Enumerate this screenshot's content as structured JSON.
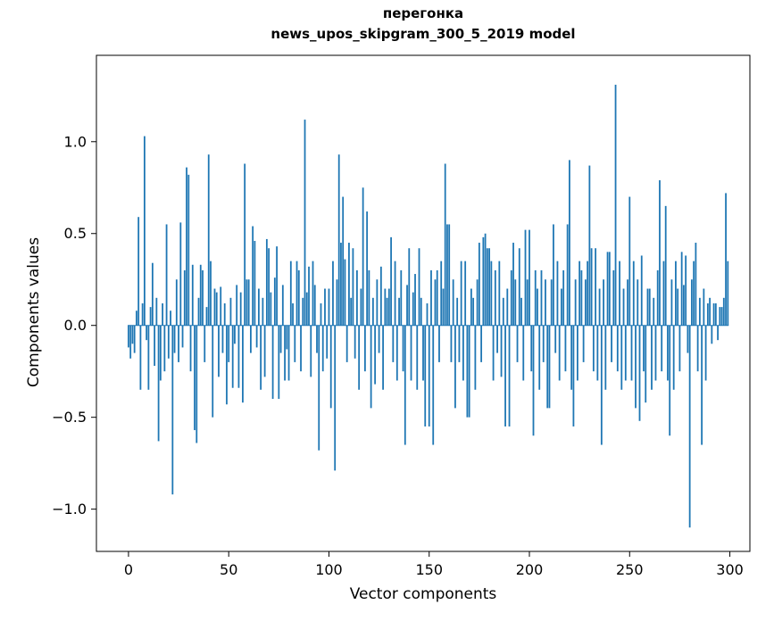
{
  "chart": {
    "title_line1": "перегонка",
    "title_line2": "news_upos_skipgram_300_5_2019 model",
    "xlabel": "Vector components",
    "ylabel": "Components values"
  },
  "chart_data": {
    "type": "bar",
    "title": "перегонка — news_upos_skipgram_300_5_2019 model",
    "xlabel": "Vector components",
    "ylabel": "Components values",
    "legend": null,
    "grid": false,
    "bar_color": "#1f77b4",
    "xlim": [
      -16,
      310
    ],
    "ylim": [
      -1.23,
      1.47
    ],
    "xticks": [
      0,
      50,
      100,
      150,
      200,
      250,
      300
    ],
    "xtick_labels": [
      "0",
      "50",
      "100",
      "150",
      "200",
      "250",
      "300"
    ],
    "yticks": [
      -1.0,
      -0.5,
      0.0,
      0.5,
      1.0
    ],
    "ytick_labels": [
      "−1.0",
      "−0.5",
      "0.0",
      "0.5",
      "1.0"
    ],
    "x_start": 0,
    "bar_width_units": 0.8,
    "values": [
      -0.12,
      -0.18,
      -0.1,
      -0.15,
      0.08,
      0.59,
      -0.35,
      0.12,
      1.03,
      -0.08,
      -0.35,
      0.1,
      0.34,
      -0.22,
      0.15,
      -0.63,
      -0.3,
      0.12,
      -0.25,
      0.55,
      -0.18,
      0.08,
      -0.92,
      -0.15,
      0.25,
      -0.2,
      0.56,
      -0.12,
      0.3,
      0.86,
      0.82,
      -0.25,
      0.33,
      -0.57,
      -0.64,
      0.15,
      0.33,
      0.3,
      -0.2,
      0.1,
      0.93,
      0.35,
      -0.5,
      0.2,
      0.18,
      -0.28,
      0.21,
      -0.15,
      0.12,
      -0.43,
      -0.2,
      0.15,
      -0.34,
      -0.1,
      0.22,
      -0.34,
      0.18,
      -0.42,
      0.88,
      0.25,
      0.25,
      -0.15,
      0.54,
      0.46,
      -0.12,
      0.2,
      -0.35,
      0.15,
      -0.28,
      0.47,
      0.42,
      0.18,
      -0.4,
      0.26,
      0.43,
      -0.4,
      -0.15,
      0.22,
      -0.3,
      -0.13,
      -0.3,
      0.35,
      0.12,
      -0.2,
      0.35,
      0.3,
      -0.25,
      0.15,
      1.12,
      0.18,
      0.32,
      -0.28,
      0.35,
      0.22,
      -0.15,
      -0.68,
      0.12,
      -0.25,
      0.2,
      -0.18,
      0.2,
      -0.45,
      0.35,
      -0.79,
      0.25,
      0.93,
      0.45,
      0.7,
      0.36,
      -0.2,
      0.45,
      0.15,
      0.42,
      -0.18,
      0.3,
      -0.35,
      0.2,
      0.75,
      -0.25,
      0.62,
      0.3,
      -0.45,
      0.15,
      -0.32,
      0.25,
      -0.15,
      0.32,
      -0.35,
      0.2,
      0.15,
      0.2,
      0.48,
      -0.2,
      0.35,
      -0.3,
      0.15,
      0.3,
      -0.25,
      -0.65,
      0.22,
      0.42,
      -0.3,
      0.18,
      0.28,
      -0.35,
      0.42,
      0.15,
      -0.3,
      -0.55,
      0.12,
      -0.55,
      0.3,
      -0.65,
      0.25,
      0.3,
      -0.2,
      0.35,
      0.2,
      0.88,
      0.55,
      0.55,
      -0.2,
      0.25,
      -0.45,
      0.15,
      -0.2,
      0.35,
      -0.3,
      0.35,
      -0.5,
      -0.5,
      0.2,
      0.15,
      -0.35,
      0.25,
      0.45,
      -0.2,
      0.48,
      0.5,
      0.42,
      0.42,
      0.35,
      -0.3,
      0.3,
      -0.15,
      0.35,
      -0.28,
      0.15,
      -0.55,
      0.2,
      -0.55,
      0.3,
      0.45,
      0.25,
      -0.2,
      0.42,
      0.15,
      -0.3,
      0.52,
      0.25,
      0.52,
      -0.25,
      -0.6,
      0.3,
      0.2,
      -0.35,
      0.3,
      -0.2,
      0.25,
      -0.45,
      -0.45,
      0.25,
      0.55,
      -0.15,
      0.35,
      -0.3,
      0.2,
      0.3,
      -0.25,
      0.55,
      0.9,
      -0.35,
      -0.55,
      0.25,
      -0.3,
      0.35,
      0.3,
      -0.2,
      0.25,
      0.35,
      0.87,
      0.42,
      -0.25,
      0.42,
      -0.3,
      0.2,
      -0.65,
      0.25,
      -0.35,
      0.4,
      0.4,
      -0.2,
      0.3,
      1.31,
      -0.25,
      0.35,
      -0.35,
      0.2,
      -0.3,
      0.25,
      0.7,
      -0.3,
      0.35,
      -0.45,
      0.25,
      -0.52,
      0.38,
      -0.25,
      -0.42,
      0.2,
      0.2,
      -0.35,
      0.15,
      -0.3,
      0.3,
      0.79,
      -0.25,
      0.35,
      0.65,
      -0.3,
      -0.6,
      0.25,
      -0.35,
      0.35,
      0.2,
      -0.25,
      0.4,
      0.22,
      0.38,
      -0.15,
      -1.1,
      0.25,
      0.35,
      0.45,
      -0.25,
      0.15,
      -0.65,
      0.2,
      -0.3,
      0.12,
      0.15,
      -0.1,
      0.12,
      0.12,
      -0.08,
      0.1,
      0.1,
      0.15,
      0.72,
      0.35
    ]
  }
}
